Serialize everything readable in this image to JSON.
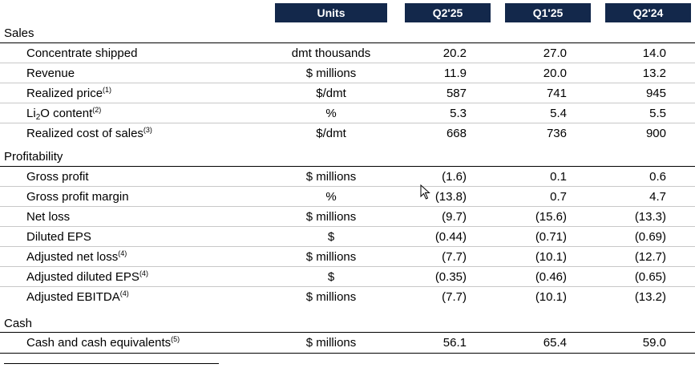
{
  "header": {
    "units": "Units",
    "col1": "Q2'25",
    "col2": "Q1'25",
    "col3": "Q2'24"
  },
  "sections": {
    "sales": {
      "title": "Sales",
      "rows": [
        {
          "label": "Concentrate shipped",
          "note": "",
          "units": "dmt thousands",
          "v1": "20.2",
          "v2": "27.0",
          "v3": "14.0"
        },
        {
          "label": "Revenue",
          "note": "",
          "units": "$ millions",
          "v1": "11.9",
          "v2": "20.0",
          "v3": "13.2"
        },
        {
          "label": "Realized price",
          "note": "(1)",
          "units": "$/dmt",
          "v1": "587",
          "v2": "741",
          "v3": "945"
        },
        {
          "label_pre": "Li",
          "label_sub": "2",
          "label_post": "O content",
          "note": "(2)",
          "units": "%",
          "v1": "5.3",
          "v2": "5.4",
          "v3": "5.5"
        },
        {
          "label": "Realized cost of sales",
          "note": "(3)",
          "units": "$/dmt",
          "v1": "668",
          "v2": "736",
          "v3": "900"
        }
      ]
    },
    "profitability": {
      "title": "Profitability",
      "rows": [
        {
          "label": "Gross profit",
          "note": "",
          "units": "$ millions",
          "v1": "(1.6)",
          "v2": "0.1",
          "v3": "0.6"
        },
        {
          "label": "Gross profit margin",
          "note": "",
          "units": "%",
          "v1": "(13.8)",
          "v2": "0.7",
          "v3": "4.7"
        },
        {
          "label": "Net loss",
          "note": "",
          "units": "$ millions",
          "v1": "(9.7)",
          "v2": "(15.6)",
          "v3": "(13.3)"
        },
        {
          "label": "Diluted EPS",
          "note": "",
          "units": "$",
          "v1": "(0.44)",
          "v2": "(0.71)",
          "v3": "(0.69)"
        },
        {
          "label": "Adjusted net loss",
          "note": "(4)",
          "units": "$ millions",
          "v1": "(7.7)",
          "v2": "(10.1)",
          "v3": "(12.7)"
        },
        {
          "label": "Adjusted diluted EPS",
          "note": "(4)",
          "units": "$",
          "v1": "(0.35)",
          "v2": "(0.46)",
          "v3": "(0.65)"
        },
        {
          "label": "Adjusted EBITDA",
          "note": "(4)",
          "units": "$ millions",
          "v1": "(7.7)",
          "v2": "(10.1)",
          "v3": "(13.2)"
        }
      ]
    },
    "cash": {
      "title": "Cash",
      "rows": [
        {
          "label": "Cash and cash equivalents",
          "note": "(5)",
          "units": "$ millions",
          "v1": "56.1",
          "v2": "65.4",
          "v3": "59.0"
        }
      ]
    }
  },
  "icons": {
    "cursor": "mouse-pointer-icon"
  }
}
